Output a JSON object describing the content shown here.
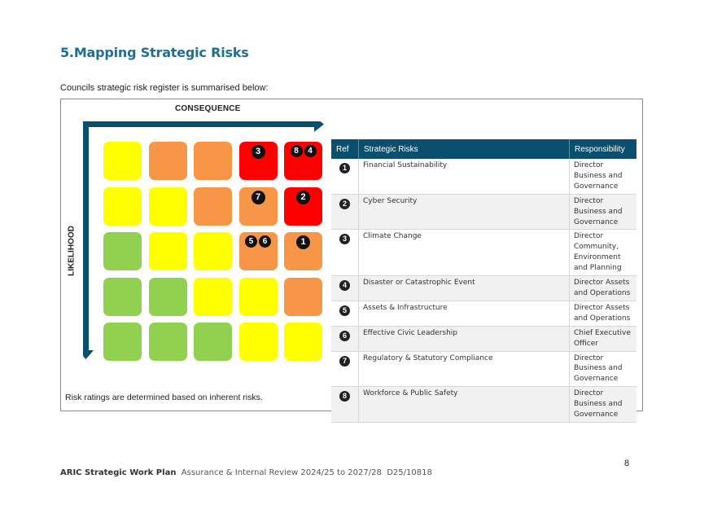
{
  "heading": {
    "number": "5.",
    "title": "Mapping Strategic Risks"
  },
  "intro": "Councils strategic risk register is summarised below:",
  "matrix": {
    "consequence_label": "CONSEQUENCE",
    "likelihood_label": "LIKELIHOOD",
    "colors": {
      "green": "#92d050",
      "yellow": "#ffff00",
      "orange": "#f79646",
      "red": "#ff0000"
    },
    "rows": [
      {
        "cells": [
          {
            "color": "yellow",
            "marks": []
          },
          {
            "color": "orange",
            "marks": []
          },
          {
            "color": "orange",
            "marks": []
          },
          {
            "color": "red",
            "marks": [
              "3"
            ]
          },
          {
            "color": "red",
            "marks": [
              "8",
              "4"
            ]
          }
        ]
      },
      {
        "cells": [
          {
            "color": "yellow",
            "marks": []
          },
          {
            "color": "yellow",
            "marks": []
          },
          {
            "color": "orange",
            "marks": []
          },
          {
            "color": "orange",
            "marks": [
              "7"
            ]
          },
          {
            "color": "red",
            "marks": [
              "2"
            ]
          }
        ]
      },
      {
        "cells": [
          {
            "color": "green",
            "marks": []
          },
          {
            "color": "yellow",
            "marks": []
          },
          {
            "color": "yellow",
            "marks": []
          },
          {
            "color": "orange",
            "marks": [
              "5",
              "6"
            ]
          },
          {
            "color": "orange",
            "marks": [
              "1"
            ]
          }
        ]
      },
      {
        "cells": [
          {
            "color": "green",
            "marks": []
          },
          {
            "color": "green",
            "marks": []
          },
          {
            "color": "yellow",
            "marks": []
          },
          {
            "color": "yellow",
            "marks": []
          },
          {
            "color": "orange",
            "marks": []
          }
        ]
      },
      {
        "cells": [
          {
            "color": "green",
            "marks": []
          },
          {
            "color": "green",
            "marks": []
          },
          {
            "color": "green",
            "marks": []
          },
          {
            "color": "yellow",
            "marks": []
          },
          {
            "color": "yellow",
            "marks": []
          }
        ]
      }
    ]
  },
  "table": {
    "headers": {
      "ref": "Ref",
      "risk": "Strategic Risks",
      "responsibility": "Responsibility"
    },
    "rows": [
      {
        "ref": "1",
        "risk": "Financial Sustainability",
        "responsibility": "Director Business and Governance"
      },
      {
        "ref": "2",
        "risk": "Cyber Security",
        "responsibility": "Director Business and Governance"
      },
      {
        "ref": "3",
        "risk": "Climate Change",
        "responsibility": "Director Community, Environment and Planning"
      },
      {
        "ref": "4",
        "risk": "Disaster or Catastrophic Event",
        "responsibility": "Director Assets and Operations"
      },
      {
        "ref": "5",
        "risk": "Assets & Infrastructure",
        "responsibility": "Director Assets and Operations"
      },
      {
        "ref": "6",
        "risk": "Effective Civic Leadership",
        "responsibility": "Chief Executive Officer"
      },
      {
        "ref": "7",
        "risk": "Regulatory & Statutory Compliance",
        "responsibility": "Director Business and Governance"
      },
      {
        "ref": "8",
        "risk": "Workforce & Public Safety",
        "responsibility": "Director Business and Governance"
      }
    ]
  },
  "note": "Risk ratings are determined based on inherent risks.",
  "page_number": "8",
  "footer": {
    "doc_title": "ARIC Strategic Work Plan",
    "subtitle": "Assurance & Internal Review 2024/25 to 2027/28",
    "ref": "D25/10818"
  }
}
